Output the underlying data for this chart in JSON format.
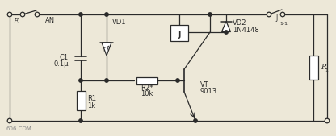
{
  "bg_color": "#ede8d8",
  "line_color": "#2a2a2a",
  "text_color": "#2a2a2a",
  "watermark": "606.COM",
  "labels": {
    "E": "E",
    "AN": "AN",
    "C1": "C1",
    "C1_val": "0.1μ",
    "VD1": "VD1",
    "R1": "R1",
    "R1_val": "1k",
    "R2": "R2*",
    "R2_val": "10k",
    "J": "J",
    "J_relay": "J",
    "J_relay_sub": "1-1",
    "VD2": "VD2",
    "VD2_val": "1N4148",
    "VT": "VT",
    "VT_val": "9013",
    "R1_load": "R"
  }
}
